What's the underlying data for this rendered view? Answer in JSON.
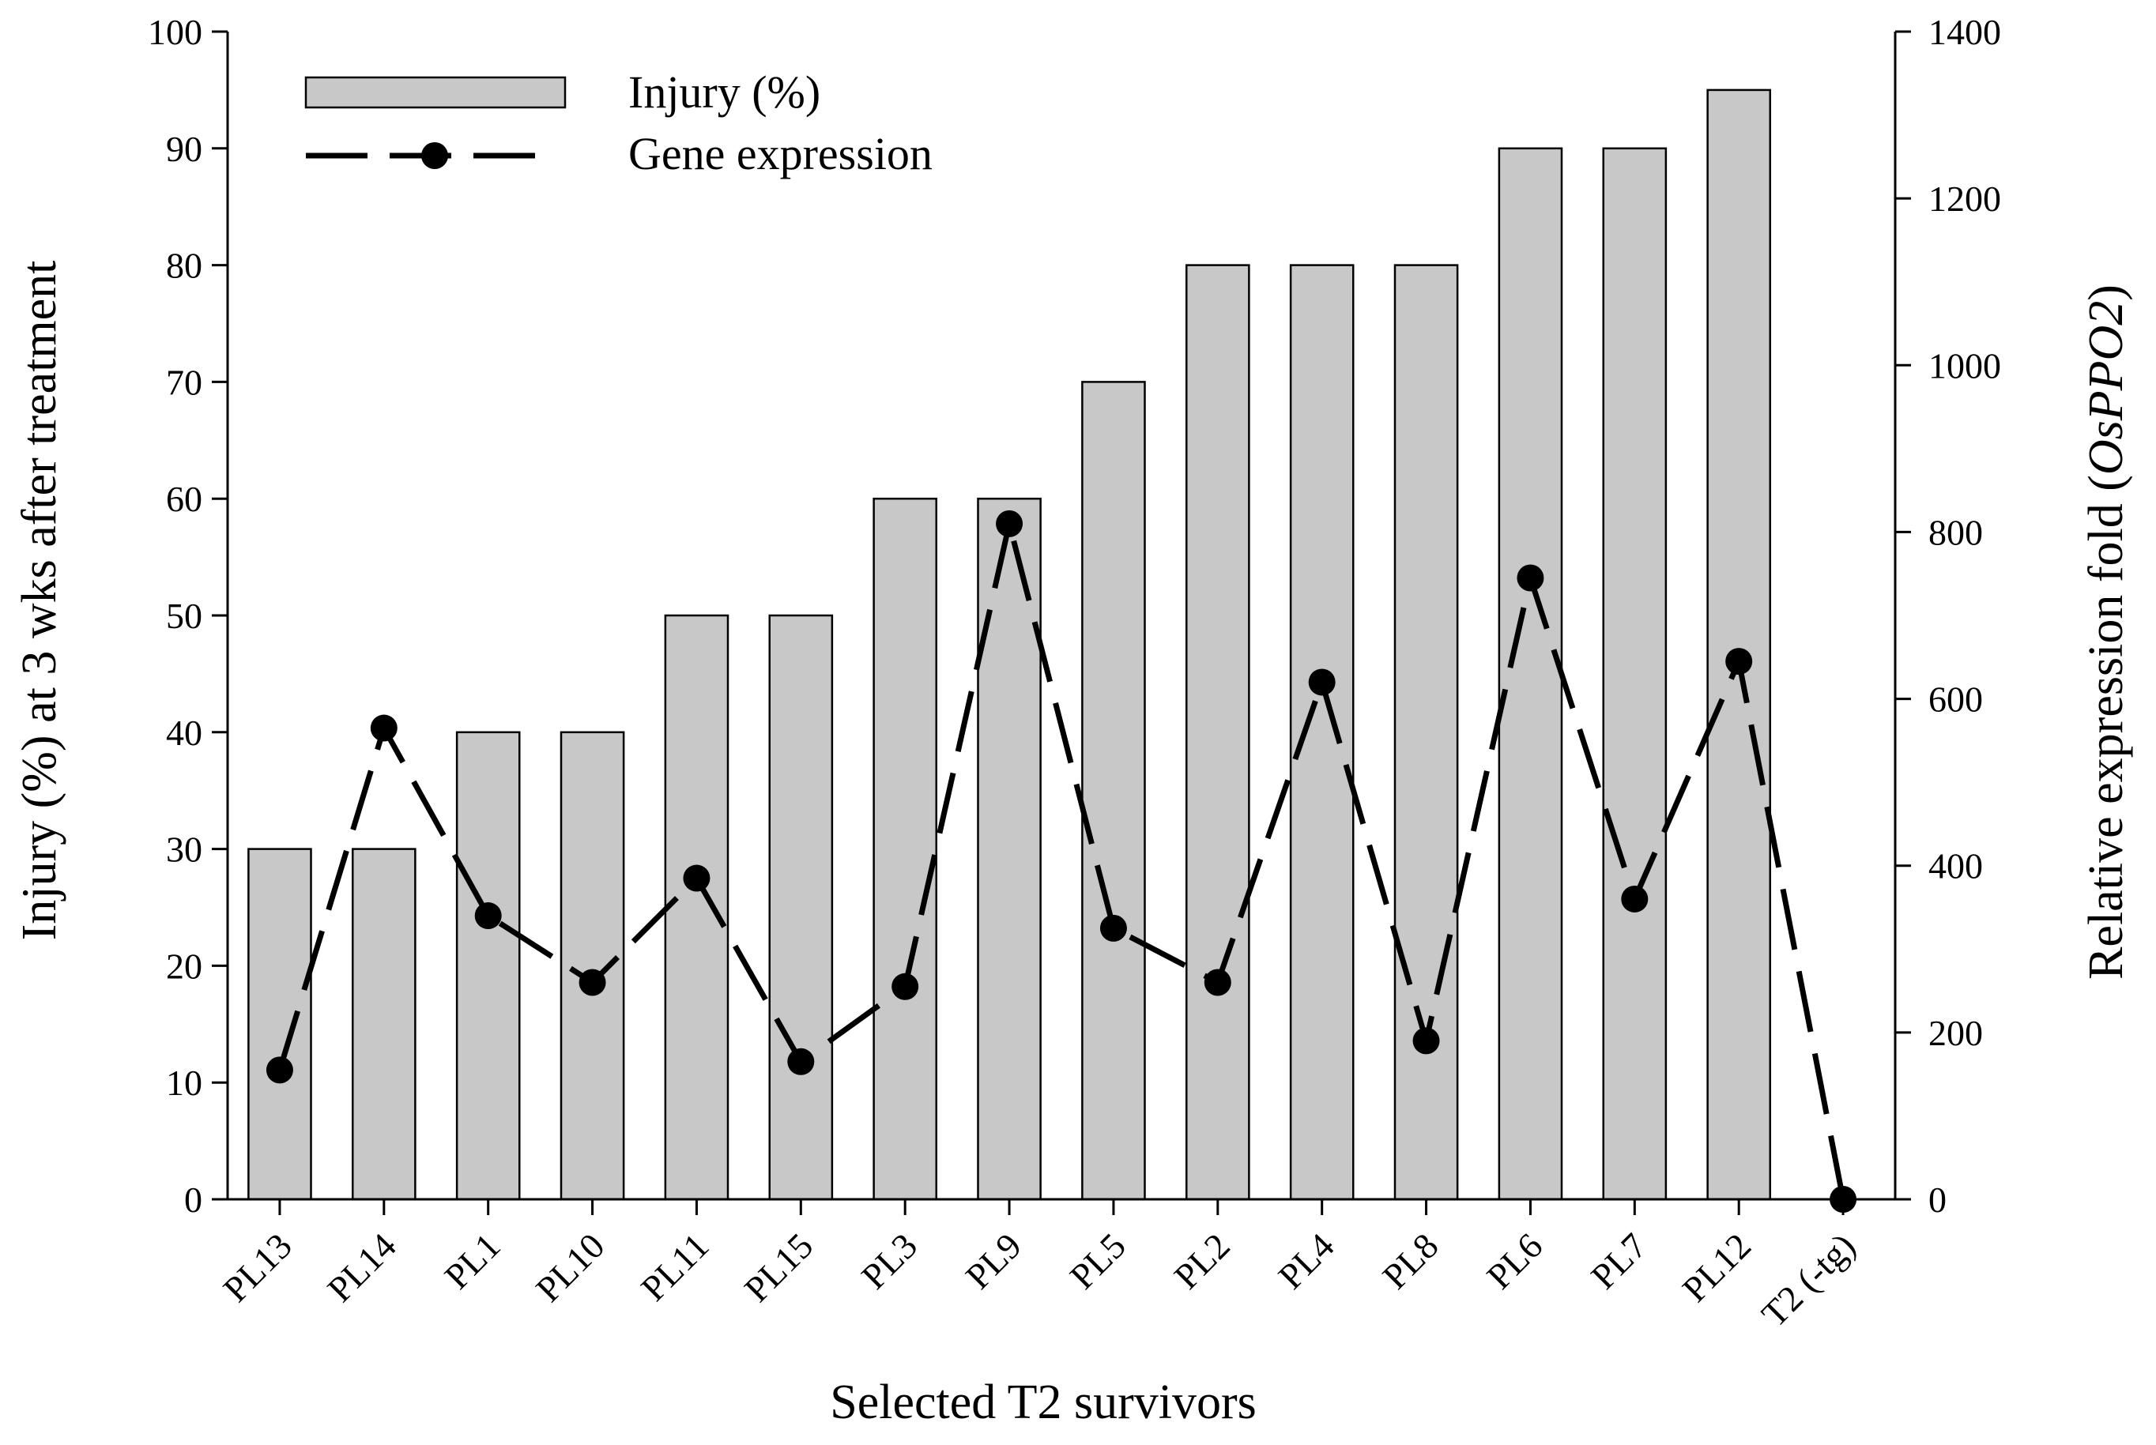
{
  "chart_data": {
    "type": "bar",
    "categories": [
      "PL13",
      "PL14",
      "PL1",
      "PL10",
      "PL11",
      "PL15",
      "PL3",
      "PL9",
      "PL5",
      "PL2",
      "PL4",
      "PL8",
      "PL6",
      "PL7",
      "PL12",
      "T2 (-tg)"
    ],
    "series": [
      {
        "name": "Injury (%)",
        "kind": "bar",
        "axis": "left",
        "values": [
          30,
          30,
          40,
          40,
          50,
          50,
          60,
          60,
          70,
          80,
          80,
          80,
          90,
          90,
          95,
          null
        ]
      },
      {
        "name": "Gene expression",
        "kind": "line",
        "axis": "right",
        "values": [
          155,
          565,
          340,
          260,
          385,
          165,
          255,
          810,
          325,
          260,
          620,
          190,
          745,
          360,
          645,
          0
        ]
      }
    ],
    "xlabel": "Selected T2 survivors",
    "ylabel": "Injury (%) at 3 wks after treatment",
    "y2label_prefix": "Relative expression fold (",
    "y2label_gene": "OsPPO2",
    "y2label_suffix": ")",
    "ylim": [
      0,
      100
    ],
    "y2lim": [
      0,
      1400
    ],
    "yticks": [
      "0",
      "10",
      "20",
      "30",
      "40",
      "50",
      "60",
      "70",
      "80",
      "90",
      "100"
    ],
    "y2ticks": [
      "0",
      "200",
      "400",
      "600",
      "800",
      "1000",
      "1200",
      "1400"
    ],
    "colors": {
      "bar_fill": "#c8c8c8",
      "bar_stroke": "#000000",
      "line": "#000000",
      "marker": "#000000"
    },
    "legend": {
      "position": "top-left",
      "bar_label": "Injury (%)",
      "line_label": "Gene expression"
    }
  }
}
